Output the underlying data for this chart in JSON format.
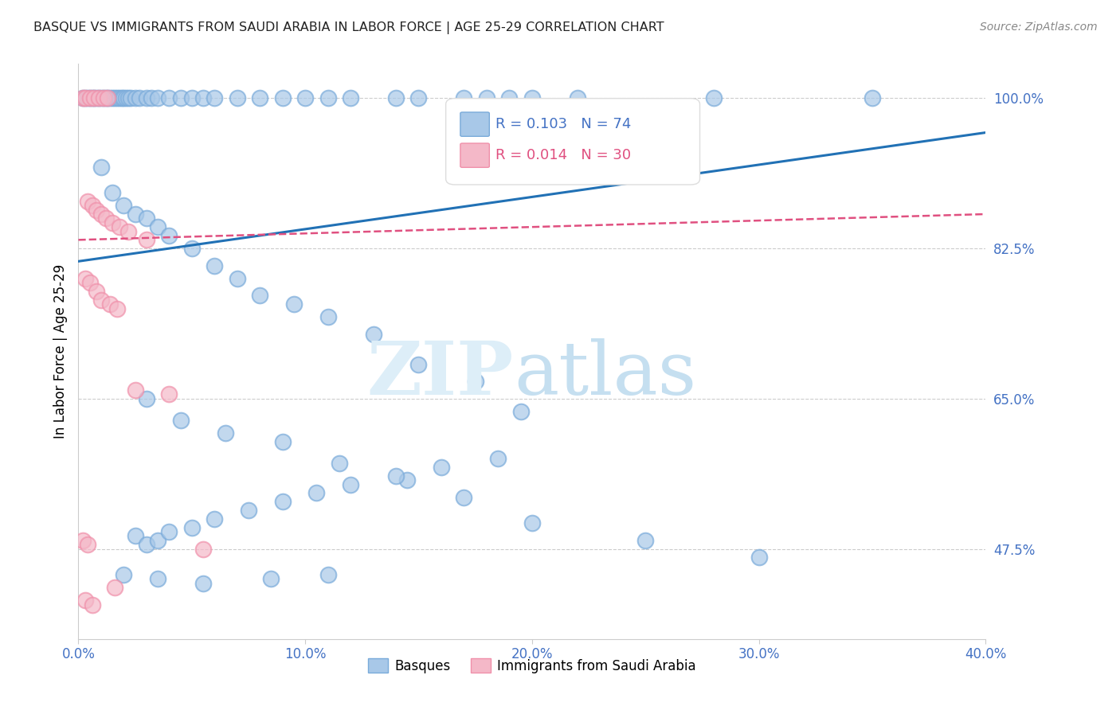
{
  "title": "BASQUE VS IMMIGRANTS FROM SAUDI ARABIA IN LABOR FORCE | AGE 25-29 CORRELATION CHART",
  "source": "Source: ZipAtlas.com",
  "xlabel_vals": [
    0.0,
    10.0,
    20.0,
    30.0,
    40.0
  ],
  "ylabel_vals": [
    47.5,
    65.0,
    82.5,
    100.0
  ],
  "xmin": 0.0,
  "xmax": 40.0,
  "ymin": 37.0,
  "ymax": 104.0,
  "ylabel_label": "In Labor Force | Age 25-29",
  "legend_blue_r": "R = 0.103",
  "legend_blue_n": "N = 74",
  "legend_pink_r": "R = 0.014",
  "legend_pink_n": "N = 30",
  "legend_blue_label": "Basques",
  "legend_pink_label": "Immigrants from Saudi Arabia",
  "blue_color": "#a8c8e8",
  "pink_color": "#f4b8c8",
  "blue_edge_color": "#7aabda",
  "pink_edge_color": "#f090aa",
  "blue_line_color": "#2171b5",
  "pink_line_color": "#e05080",
  "axis_label_color": "#4472C4",
  "grid_color": "#cccccc",
  "blue_dots_x": [
    0.2,
    0.3,
    0.4,
    0.5,
    0.6,
    0.7,
    0.8,
    0.9,
    1.0,
    1.1,
    1.2,
    1.3,
    1.4,
    1.5,
    1.6,
    1.7,
    1.8,
    1.9,
    2.0,
    2.1,
    2.2,
    2.3,
    2.5,
    2.7,
    3.0,
    3.2,
    3.5,
    4.0,
    4.5,
    5.0,
    5.5,
    6.0,
    7.0,
    8.0,
    9.0,
    10.0,
    11.0,
    12.0,
    14.0,
    15.0,
    17.0,
    18.0,
    19.0,
    20.0,
    22.0,
    28.0,
    35.0,
    1.0,
    1.5,
    2.0,
    2.5,
    3.0,
    3.5,
    4.0,
    5.0,
    6.0,
    7.0,
    8.0,
    9.5,
    11.0,
    13.0,
    15.0,
    17.5,
    19.5,
    3.0,
    4.5,
    6.5,
    9.0,
    11.5,
    14.5,
    17.0,
    20.0,
    25.0,
    30.0
  ],
  "blue_dots_y": [
    100.0,
    100.0,
    100.0,
    100.0,
    100.0,
    100.0,
    100.0,
    100.0,
    100.0,
    100.0,
    100.0,
    100.0,
    100.0,
    100.0,
    100.0,
    100.0,
    100.0,
    100.0,
    100.0,
    100.0,
    100.0,
    100.0,
    100.0,
    100.0,
    100.0,
    100.0,
    100.0,
    100.0,
    100.0,
    100.0,
    100.0,
    100.0,
    100.0,
    100.0,
    100.0,
    100.0,
    100.0,
    100.0,
    100.0,
    100.0,
    100.0,
    100.0,
    100.0,
    100.0,
    100.0,
    100.0,
    100.0,
    92.0,
    89.0,
    87.5,
    86.5,
    86.0,
    85.0,
    84.0,
    82.5,
    80.5,
    79.0,
    77.0,
    76.0,
    74.5,
    72.5,
    69.0,
    67.0,
    63.5,
    65.0,
    62.5,
    61.0,
    60.0,
    57.5,
    55.5,
    53.5,
    50.5,
    48.5,
    46.5
  ],
  "blue_dots_x_low": [
    2.5,
    3.0,
    3.5,
    4.0,
    5.0,
    6.0,
    7.5,
    9.0,
    10.5,
    12.0,
    14.0,
    16.0,
    18.5,
    2.0,
    3.5,
    5.5,
    8.5,
    11.0
  ],
  "blue_dots_y_low": [
    49.0,
    48.0,
    48.5,
    49.5,
    50.0,
    51.0,
    52.0,
    53.0,
    54.0,
    55.0,
    56.0,
    57.0,
    58.0,
    44.5,
    44.0,
    43.5,
    44.0,
    44.5
  ],
  "pink_dots_x": [
    0.2,
    0.3,
    0.5,
    0.7,
    0.9,
    1.1,
    1.3,
    0.4,
    0.6,
    0.8,
    1.0,
    1.2,
    1.5,
    1.8,
    2.2,
    3.0,
    0.3,
    0.5,
    0.8,
    1.0,
    1.4,
    1.7,
    2.5,
    4.0,
    0.2,
    0.4,
    1.6,
    5.5,
    0.3,
    0.6
  ],
  "pink_dots_y": [
    100.0,
    100.0,
    100.0,
    100.0,
    100.0,
    100.0,
    100.0,
    88.0,
    87.5,
    87.0,
    86.5,
    86.0,
    85.5,
    85.0,
    84.5,
    83.5,
    79.0,
    78.5,
    77.5,
    76.5,
    76.0,
    75.5,
    66.0,
    65.5,
    48.5,
    48.0,
    43.0,
    47.5,
    41.5,
    41.0
  ],
  "blue_line_x": [
    0.0,
    40.0
  ],
  "blue_line_y": [
    81.0,
    96.0
  ],
  "pink_line_x": [
    0.0,
    40.0
  ],
  "pink_line_y": [
    83.5,
    86.5
  ]
}
